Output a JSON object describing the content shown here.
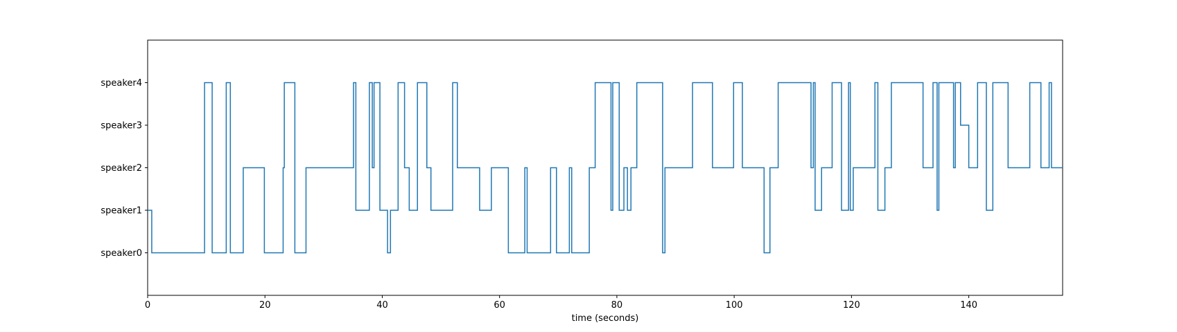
{
  "chart_data": {
    "type": "line",
    "xlabel": "time (seconds)",
    "xlim": [
      0,
      156
    ],
    "ylim": [
      -1,
      5
    ],
    "x_ticks": [
      "0",
      "20",
      "40",
      "60",
      "80",
      "100",
      "120",
      "140"
    ],
    "x_tick_values": [
      0,
      20,
      40,
      60,
      80,
      100,
      120,
      140
    ],
    "y_categories": [
      "speaker0",
      "speaker1",
      "speaker2",
      "speaker3",
      "speaker4"
    ],
    "grid": false,
    "series": [
      {
        "color": "#1f77b4",
        "step": "post",
        "x": [
          0,
          0.7,
          9.7,
          11.0,
          13.4,
          13.8,
          14.1,
          16.3,
          19.9,
          23.1,
          23.3,
          25.1,
          27.0,
          35.1,
          35.3,
          35.5,
          37.8,
          38.3,
          38.6,
          39.6,
          40.9,
          41.4,
          42.7,
          43.8,
          44.6,
          46.0,
          47.6,
          48.3,
          52.0,
          52.8,
          56.6,
          58.6,
          61.5,
          64.3,
          64.7,
          68.7,
          69.7,
          71.9,
          72.3,
          75.3,
          76.3,
          79.0,
          79.3,
          80.4,
          81.2,
          81.8,
          82.4,
          83.4,
          84.7,
          87.8,
          88.2,
          92.9,
          96.3,
          99.9,
          101.4,
          105.1,
          106.1,
          107.5,
          113.1,
          113.5,
          113.8,
          114.9,
          116.7,
          118.3,
          119.5,
          119.8,
          120.3,
          124.0,
          124.5,
          125.7,
          126.8,
          132.2,
          133.9,
          134.6,
          134.9,
          137.4,
          137.7,
          138.6,
          140.0,
          141.5,
          143.0,
          144.1,
          146.7,
          150.4,
          152.3,
          153.7,
          154.1,
          156.0
        ],
        "y": [
          1,
          0,
          4,
          0,
          4,
          4,
          0,
          2,
          0,
          2,
          4,
          0,
          2,
          4,
          4,
          1,
          4,
          2,
          4,
          1,
          0,
          1,
          4,
          2,
          1,
          4,
          2,
          1,
          4,
          2,
          1,
          2,
          0,
          2,
          0,
          2,
          0,
          2,
          0,
          2,
          4,
          1,
          4,
          1,
          2,
          1,
          2,
          4,
          4,
          0,
          2,
          4,
          2,
          4,
          2,
          0,
          2,
          4,
          2,
          4,
          1,
          2,
          4,
          1,
          4,
          1,
          2,
          4,
          1,
          2,
          4,
          2,
          4,
          1,
          4,
          2,
          4,
          3,
          2,
          4,
          1,
          4,
          2,
          4,
          2,
          4,
          2,
          2
        ]
      }
    ]
  }
}
